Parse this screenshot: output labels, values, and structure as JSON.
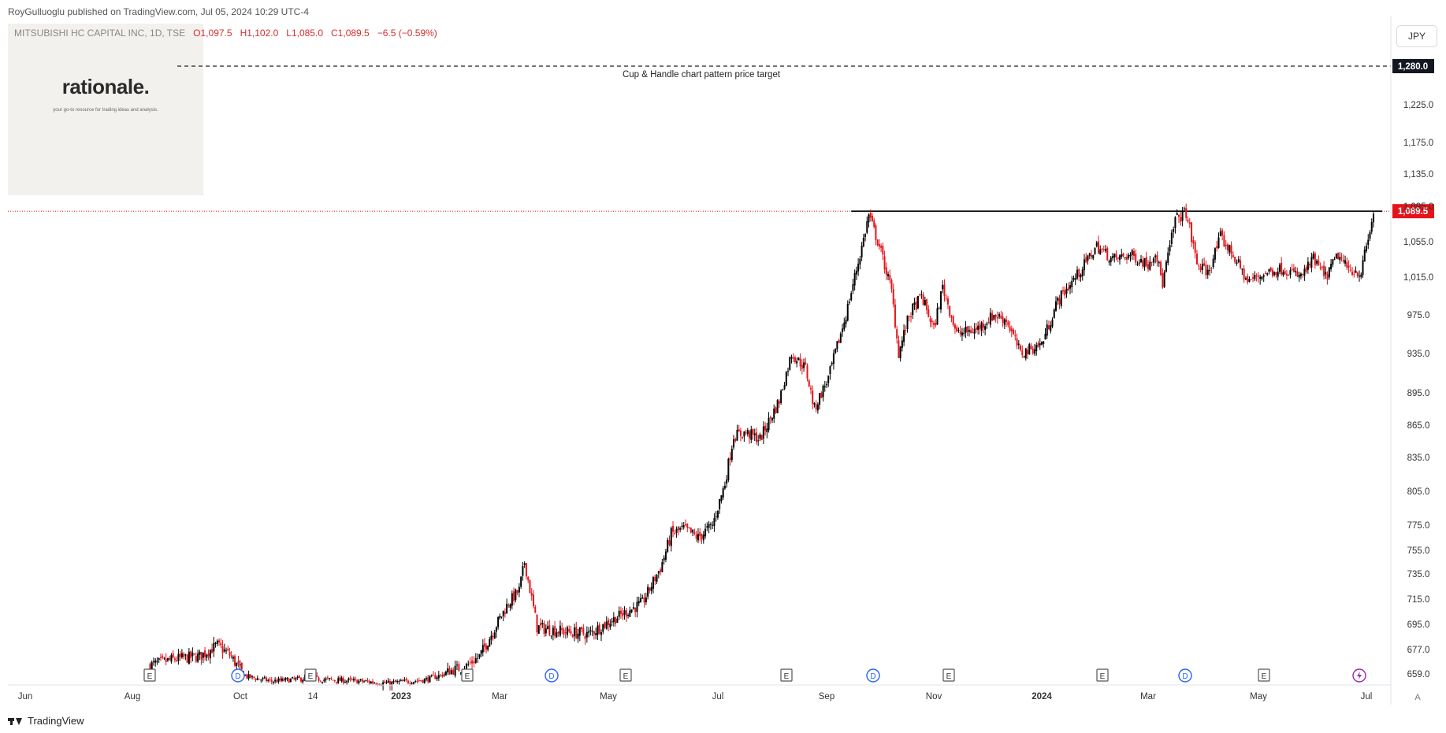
{
  "header": {
    "publisher": "RoyGulluoglu published on TradingView.com, Jul 05, 2024 10:29 UTC-4",
    "symbol": "MITSUBISHI HC CAPITAL INC, 1D, TSE",
    "open": "O1,097.5",
    "high": "H1,102.0",
    "low": "L1,085.0",
    "close": "C1,089.5",
    "change": "−6.5 (−0.59%)"
  },
  "logo": {
    "title": "rationale.",
    "tagline": "your go-to resource for trading ideas and analysis."
  },
  "currency_button": "JPY",
  "auto_button": "A",
  "footer": {
    "brand": "TradingView"
  },
  "colors": {
    "up": "#000000",
    "down": "#e5141a",
    "last_price_badge": "#e5141a",
    "target_badge": "#131722",
    "dividend_marker": "#2962ff",
    "earnings_marker": "#555555",
    "split_marker": "#9c27b0"
  },
  "chart_data": {
    "type": "candlestick",
    "timeframe": "1D",
    "currency": "JPY",
    "y_axis_ticks": [
      "1,225.0",
      "1,175.0",
      "1,135.0",
      "1,095.0",
      "1,055.0",
      "1,015.0",
      "975.0",
      "935.0",
      "895.0",
      "865.0",
      "835.0",
      "805.0",
      "775.0",
      "755.0",
      "735.0",
      "715.0",
      "695.0",
      "677.0",
      "659.0"
    ],
    "y_tick_values": [
      1225,
      1175,
      1135,
      1095,
      1055,
      1015,
      975,
      935,
      895,
      865,
      835,
      805,
      775,
      755,
      735,
      715,
      695,
      677,
      659
    ],
    "x_axis_labels": [
      "Jun",
      "Aug",
      "Oct",
      "14",
      "2023",
      "Mar",
      "May",
      "Jul",
      "Sep",
      "Nov",
      "2024",
      "Mar",
      "May",
      "Jul"
    ],
    "x_axis_bold": [
      "2023",
      "2024"
    ],
    "target_line": {
      "value": 1280.0,
      "label": "1,280.0",
      "annotation": "Cup & Handle chart pattern price target"
    },
    "resistance_line": {
      "value": 1089.5,
      "from_date": "2023-09-15",
      "to_date": "2024-07-10"
    },
    "last_price": {
      "value": 1089.5,
      "label": "1,089.5"
    },
    "events": [
      {
        "type": "E",
        "label": "E"
      },
      {
        "type": "D",
        "label": "D"
      },
      {
        "type": "E",
        "label": "E"
      },
      {
        "type": "E",
        "label": "E"
      },
      {
        "type": "D",
        "label": "D"
      },
      {
        "type": "E",
        "label": "E"
      },
      {
        "type": "E",
        "label": "E"
      },
      {
        "type": "D",
        "label": "D"
      },
      {
        "type": "E",
        "label": "E"
      },
      {
        "type": "E",
        "label": "E"
      },
      {
        "type": "D",
        "label": "D"
      },
      {
        "type": "E",
        "label": "E"
      },
      {
        "type": "split",
        "label": "S"
      }
    ],
    "close_path": [
      {
        "date": "2022-08-10",
        "close": 665
      },
      {
        "date": "2022-08-25",
        "close": 670
      },
      {
        "date": "2022-09-08",
        "close": 672
      },
      {
        "date": "2022-09-18",
        "close": 680
      },
      {
        "date": "2022-09-25",
        "close": 673
      },
      {
        "date": "2022-10-05",
        "close": 655
      },
      {
        "date": "2022-10-20",
        "close": 648
      },
      {
        "date": "2022-11-10",
        "close": 652
      },
      {
        "date": "2022-11-25",
        "close": 650
      },
      {
        "date": "2022-12-10",
        "close": 648
      },
      {
        "date": "2022-12-25",
        "close": 645
      },
      {
        "date": "2023-01-15",
        "close": 650
      },
      {
        "date": "2023-01-30",
        "close": 661
      },
      {
        "date": "2023-02-08",
        "close": 664
      },
      {
        "date": "2023-02-17",
        "close": 672
      },
      {
        "date": "2023-02-25",
        "close": 690
      },
      {
        "date": "2023-03-06",
        "close": 712
      },
      {
        "date": "2023-03-12",
        "close": 722
      },
      {
        "date": "2023-03-15",
        "close": 745
      },
      {
        "date": "2023-03-22",
        "close": 693
      },
      {
        "date": "2023-04-05",
        "close": 690
      },
      {
        "date": "2023-04-20",
        "close": 688
      },
      {
        "date": "2023-05-05",
        "close": 700
      },
      {
        "date": "2023-05-20",
        "close": 712
      },
      {
        "date": "2023-05-30",
        "close": 740
      },
      {
        "date": "2023-06-05",
        "close": 768
      },
      {
        "date": "2023-06-12",
        "close": 772
      },
      {
        "date": "2023-06-20",
        "close": 765
      },
      {
        "date": "2023-06-28",
        "close": 775
      },
      {
        "date": "2023-07-05",
        "close": 812
      },
      {
        "date": "2023-07-10",
        "close": 855
      },
      {
        "date": "2023-07-17",
        "close": 858
      },
      {
        "date": "2023-07-25",
        "close": 852
      },
      {
        "date": "2023-08-05",
        "close": 888
      },
      {
        "date": "2023-08-12",
        "close": 935
      },
      {
        "date": "2023-08-20",
        "close": 920
      },
      {
        "date": "2023-08-25",
        "close": 880
      },
      {
        "date": "2023-09-02",
        "close": 910
      },
      {
        "date": "2023-09-12",
        "close": 975
      },
      {
        "date": "2023-09-20",
        "close": 1040
      },
      {
        "date": "2023-09-25",
        "close": 1085
      },
      {
        "date": "2023-10-01",
        "close": 1050
      },
      {
        "date": "2023-10-08",
        "close": 1000
      },
      {
        "date": "2023-10-12",
        "close": 935
      },
      {
        "date": "2023-10-18",
        "close": 975
      },
      {
        "date": "2023-10-25",
        "close": 995
      },
      {
        "date": "2023-11-01",
        "close": 960
      },
      {
        "date": "2023-11-06",
        "close": 1005
      },
      {
        "date": "2023-11-14",
        "close": 955
      },
      {
        "date": "2023-11-25",
        "close": 960
      },
      {
        "date": "2023-12-05",
        "close": 975
      },
      {
        "date": "2023-12-12",
        "close": 970
      },
      {
        "date": "2023-12-20",
        "close": 935
      },
      {
        "date": "2024-01-01",
        "close": 945
      },
      {
        "date": "2024-01-10",
        "close": 990
      },
      {
        "date": "2024-01-22",
        "close": 1020
      },
      {
        "date": "2024-02-01",
        "close": 1050
      },
      {
        "date": "2024-02-10",
        "close": 1035
      },
      {
        "date": "2024-02-20",
        "close": 1040
      },
      {
        "date": "2024-03-01",
        "close": 1030
      },
      {
        "date": "2024-03-05",
        "close": 1045
      },
      {
        "date": "2024-03-09",
        "close": 1008
      },
      {
        "date": "2024-03-16",
        "close": 1080
      },
      {
        "date": "2024-03-22",
        "close": 1088
      },
      {
        "date": "2024-03-28",
        "close": 1030
      },
      {
        "date": "2024-04-03",
        "close": 1020
      },
      {
        "date": "2024-04-10",
        "close": 1060
      },
      {
        "date": "2024-04-17",
        "close": 1040
      },
      {
        "date": "2024-04-25",
        "close": 1010
      },
      {
        "date": "2024-05-05",
        "close": 1020
      },
      {
        "date": "2024-05-15",
        "close": 1025
      },
      {
        "date": "2024-05-25",
        "close": 1015
      },
      {
        "date": "2024-06-01",
        "close": 1035
      },
      {
        "date": "2024-06-08",
        "close": 1015
      },
      {
        "date": "2024-06-15",
        "close": 1040
      },
      {
        "date": "2024-06-20",
        "close": 1025
      },
      {
        "date": "2024-06-28",
        "close": 1020
      },
      {
        "date": "2024-07-01",
        "close": 1050
      },
      {
        "date": "2024-07-04",
        "close": 1075
      },
      {
        "date": "2024-07-05",
        "close": 1089.5
      }
    ]
  }
}
